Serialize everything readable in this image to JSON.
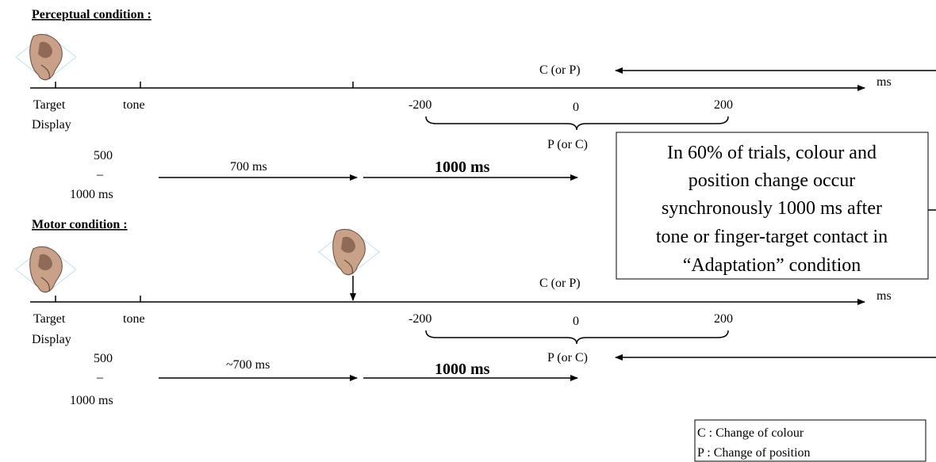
{
  "perceptual": {
    "heading": "Perceptual condition :",
    "top_label": "C (or P)",
    "axis_unit": "ms",
    "target": "Target",
    "display": "Display",
    "tone": "tone",
    "window": [
      "-200",
      "0",
      "200"
    ],
    "bottom_label": "P (or C)",
    "interval": [
      "500",
      "–",
      "1000 ms"
    ],
    "delay": "700 ms",
    "duration": "1000 ms"
  },
  "motor": {
    "heading": "Motor condition :",
    "top_label": "C (or P)",
    "axis_unit": "ms",
    "target": "Target",
    "display": "Display",
    "tone": "tone",
    "window": [
      "-200",
      "0",
      "200"
    ],
    "bottom_label": "P (or C)",
    "interval": [
      "500",
      "–",
      "1000 ms"
    ],
    "delay": "~700 ms",
    "duration": "1000 ms"
  },
  "callout": [
    "In 60% of trials, colour and",
    "position change occur",
    "synchronously 1000 ms after",
    "tone or finger-target contact in",
    "“Adaptation” condition"
  ],
  "legend": [
    "C : Change of colour",
    "P : Change of position"
  ]
}
